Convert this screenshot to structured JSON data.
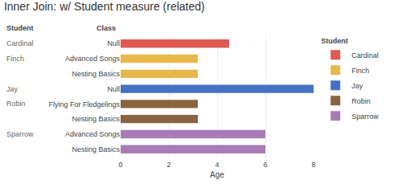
{
  "chart_data": {
    "type": "bar",
    "orientation": "horizontal",
    "title": "Inner Join: w/ Student measure (related)",
    "xlabel": "Age",
    "categories": [
      "Null",
      "Advanced Songs",
      "Nesting Basics",
      "Null",
      "Flying For Fledgelings",
      "Nesting Basics",
      "Advanced Songs",
      "Nesting Basics"
    ],
    "series": [
      {
        "name": "Cardinal",
        "color": "#E05A52",
        "values": [
          4.5,
          null,
          null,
          null,
          null,
          null,
          null,
          null
        ]
      },
      {
        "name": "Finch",
        "color": "#E8B84B",
        "values": [
          null,
          3.2,
          3.2,
          null,
          null,
          null,
          null,
          null
        ]
      },
      {
        "name": "Jay",
        "color": "#4472C4",
        "values": [
          null,
          null,
          null,
          8.0,
          null,
          null,
          null,
          null
        ]
      },
      {
        "name": "Robin",
        "color": "#8B6340",
        "values": [
          null,
          null,
          null,
          null,
          3.2,
          3.2,
          null,
          null
        ]
      },
      {
        "name": "Sparrow",
        "color": "#A97BB5",
        "values": [
          null,
          null,
          null,
          null,
          null,
          null,
          6.0,
          6.0
        ]
      }
    ],
    "xlim": [
      0,
      8
    ],
    "xticks": [
      0,
      2,
      4,
      6,
      8
    ],
    "grid": true,
    "legend": "right",
    "legend_title": "Student",
    "column_headers": [
      "Student",
      "Class"
    ]
  }
}
